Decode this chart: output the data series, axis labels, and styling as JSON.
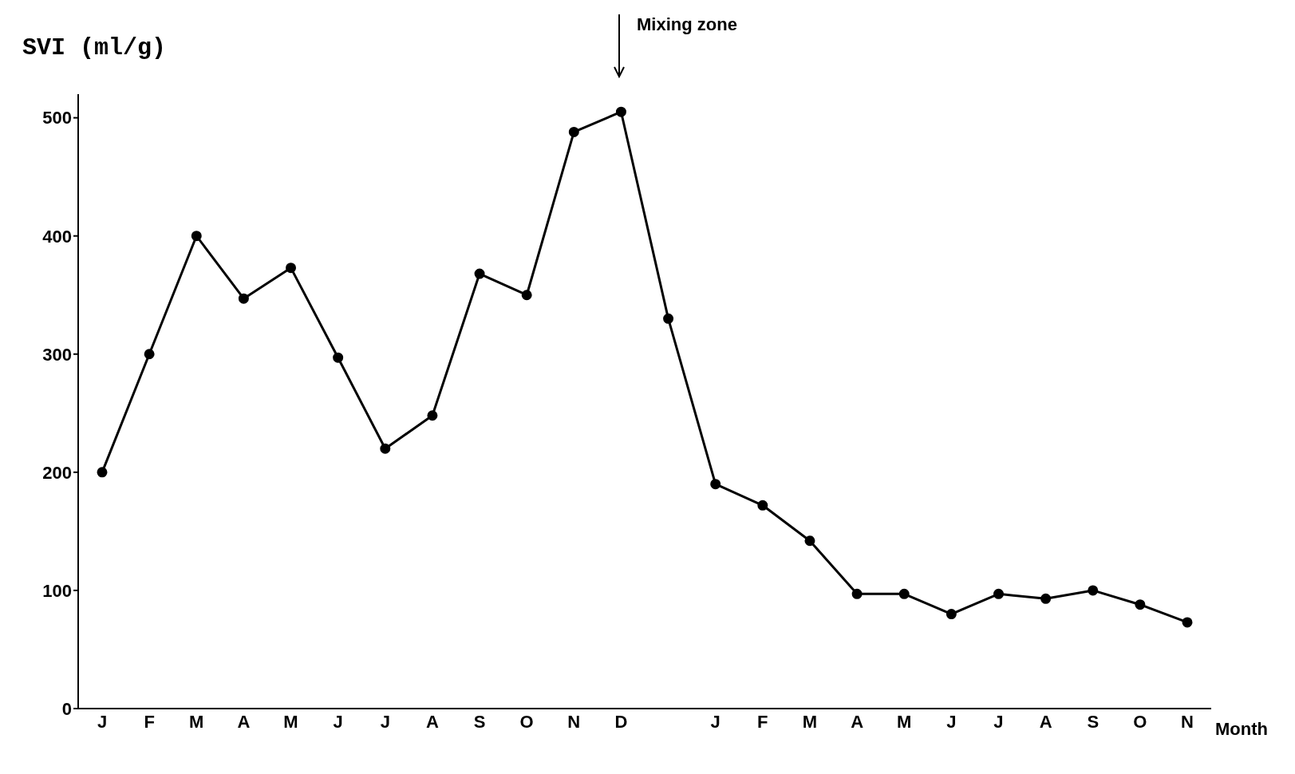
{
  "chart_data": {
    "type": "line",
    "ylabel": "SVI (ml/g)",
    "xlabel": "Month",
    "categories": [
      "J",
      "F",
      "M",
      "A",
      "M",
      "J",
      "J",
      "A",
      "S",
      "O",
      "N",
      "D",
      null,
      "J",
      "F",
      "M",
      "A",
      "M",
      "J",
      "J",
      "A",
      "S",
      "O",
      "N"
    ],
    "series": [
      {
        "color": "#000000",
        "values": [
          200,
          300,
          400,
          347,
          373,
          297,
          220,
          248,
          368,
          350,
          488,
          505,
          330,
          190,
          172,
          142,
          97,
          97,
          80,
          97,
          93,
          100,
          88,
          73
        ]
      }
    ],
    "ylim": [
      0,
      520
    ],
    "yticks": [
      0,
      100,
      200,
      300,
      400,
      500
    ],
    "annotations": [
      "Mixing zone"
    ],
    "grid": false,
    "legend": false,
    "marker": "circle",
    "line_style": "solid"
  }
}
